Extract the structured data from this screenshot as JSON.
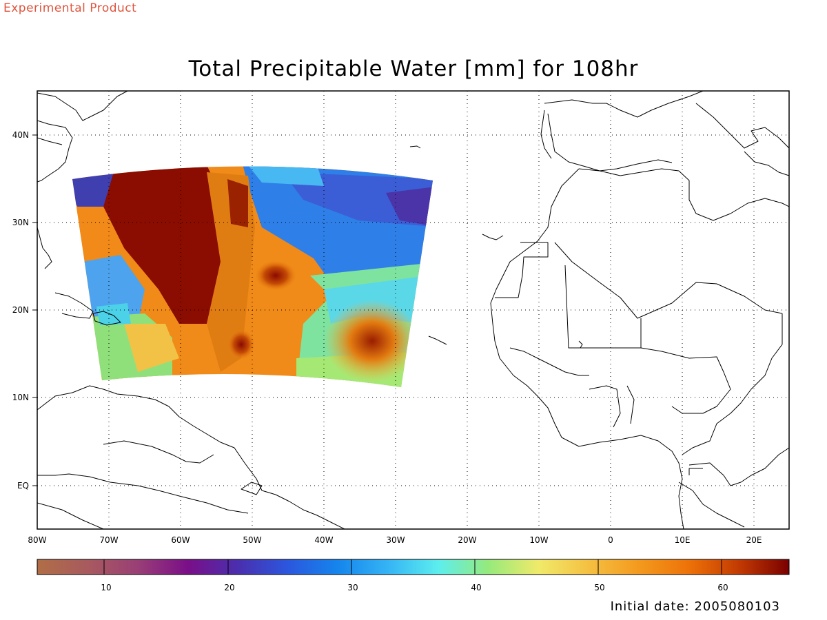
{
  "header": {
    "tag": "Experimental Product",
    "title": "Total Precipitable Water [mm] for 108hr"
  },
  "footer": {
    "initial_date": "Initial date: 2005080103"
  },
  "map": {
    "lat_ticks": [
      "40N",
      "30N",
      "20N",
      "10N",
      "EQ"
    ],
    "lon_ticks": [
      "80W",
      "70W",
      "60W",
      "50W",
      "40W",
      "30W",
      "20W",
      "10W",
      "0",
      "10E",
      "20E"
    ],
    "gridlines": "dotted",
    "coastline_color": "#000000"
  },
  "colorbar": {
    "tick_labels": [
      "10",
      "20",
      "30",
      "40",
      "50",
      "60"
    ],
    "colors": [
      "#b06e46",
      "#a85a5e",
      "#9a3f76",
      "#7a0f88",
      "#4a2fae",
      "#2b57de",
      "#1585ec",
      "#35b4f5",
      "#5ceeee",
      "#96ea7c",
      "#f0ea6a",
      "#f5c042",
      "#f39a1e",
      "#ed7208",
      "#c23a02",
      "#7a0000"
    ]
  }
}
